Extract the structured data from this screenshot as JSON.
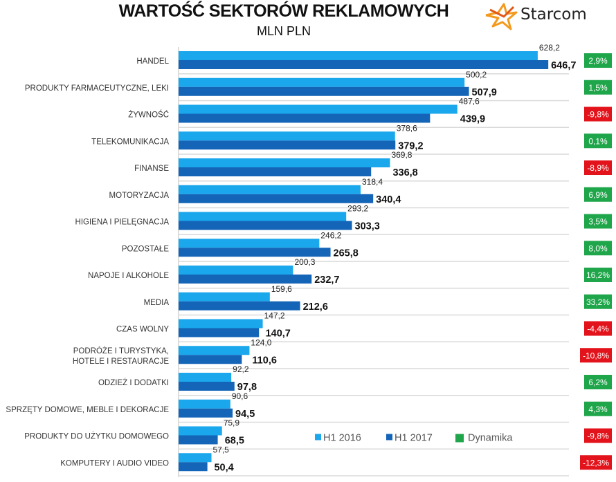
{
  "chart_data": {
    "type": "bar",
    "orientation": "horizontal",
    "title": "WARTOŚĆ SEKTORÓW REKLAMOWYCH",
    "subtitle": "MLN PLN",
    "categories": [
      "HANDEL",
      "PRODUKTY FARMACEUTYCZNE, LEKI",
      "ŻYWNOŚĆ",
      "TELEKOMUNIKACJA",
      "FINANSE",
      "MOTORYZACJA",
      "HIGIENA I PIELĘGNACJA",
      "POZOSTAŁE",
      "NAPOJE I ALKOHOLE",
      "MEDIA",
      "CZAS WOLNY",
      "PODRÓŻE I TURYSTYKA,|HOTELE I RESTAURACJE",
      "ODZIEŻ I DODATKI",
      "SPRZĘTY DOMOWE, MEBLE I DEKORACJE",
      "PRODUKTY DO UŻYTKU DOMOWEGO",
      "KOMPUTERY I AUDIO VIDEO"
    ],
    "series": [
      {
        "name": "H1 2016",
        "color": "#1aa7ec",
        "values": [
          628.2,
          500.2,
          487.6,
          378.6,
          369.8,
          318.4,
          293.2,
          246.2,
          200.3,
          159.6,
          147.2,
          124.0,
          92.2,
          90.6,
          75.9,
          57.5
        ],
        "labels": [
          "628,2",
          "500,2",
          "487,6",
          "378,6",
          "369,8",
          "318,4",
          "293,2",
          "246,2",
          "200,3",
          "159,6",
          "147,2",
          "124,0",
          "92,2",
          "90,6",
          "75,9",
          "57,5"
        ]
      },
      {
        "name": "H1 2017",
        "color": "#1464b8",
        "values": [
          646.7,
          507.9,
          439.9,
          379.2,
          336.8,
          340.4,
          303.3,
          265.8,
          232.7,
          212.6,
          140.7,
          110.6,
          97.8,
          94.5,
          68.5,
          50.4
        ],
        "labels": [
          "646,7",
          "507,9",
          "439,9",
          "379,2",
          "336,8",
          "340,4",
          "303,3",
          "265,8",
          "232,7",
          "212,6",
          "140,7",
          "110,6",
          "97,8",
          "94,5",
          "68,5",
          "50,4"
        ]
      }
    ],
    "dynamika": {
      "name": "Dynamika",
      "values": [
        2.9,
        1.5,
        -9.8,
        0.1,
        -8.9,
        6.9,
        3.5,
        8.0,
        16.2,
        33.2,
        -4.4,
        -10.8,
        6.2,
        4.3,
        -9.8,
        -12.3
      ],
      "labels": [
        "2,9%",
        "1,5%",
        "-9,8%",
        "0,1%",
        "-8,9%",
        "6,9%",
        "3,5%",
        "8,0%",
        "16,2%",
        "33,2%",
        "-4,4%",
        "-10,8%",
        "6,2%",
        "4,3%",
        "-9,8%",
        "-12,3%"
      ],
      "positive_color": "#1fa64a",
      "negative_color": "#e3131b"
    },
    "legend": {
      "placement": "bottom-right",
      "items": [
        "H1 2016",
        "H1 2017",
        "Dynamika"
      ]
    },
    "grid": true
  },
  "logo": {
    "text": "Starcom"
  }
}
